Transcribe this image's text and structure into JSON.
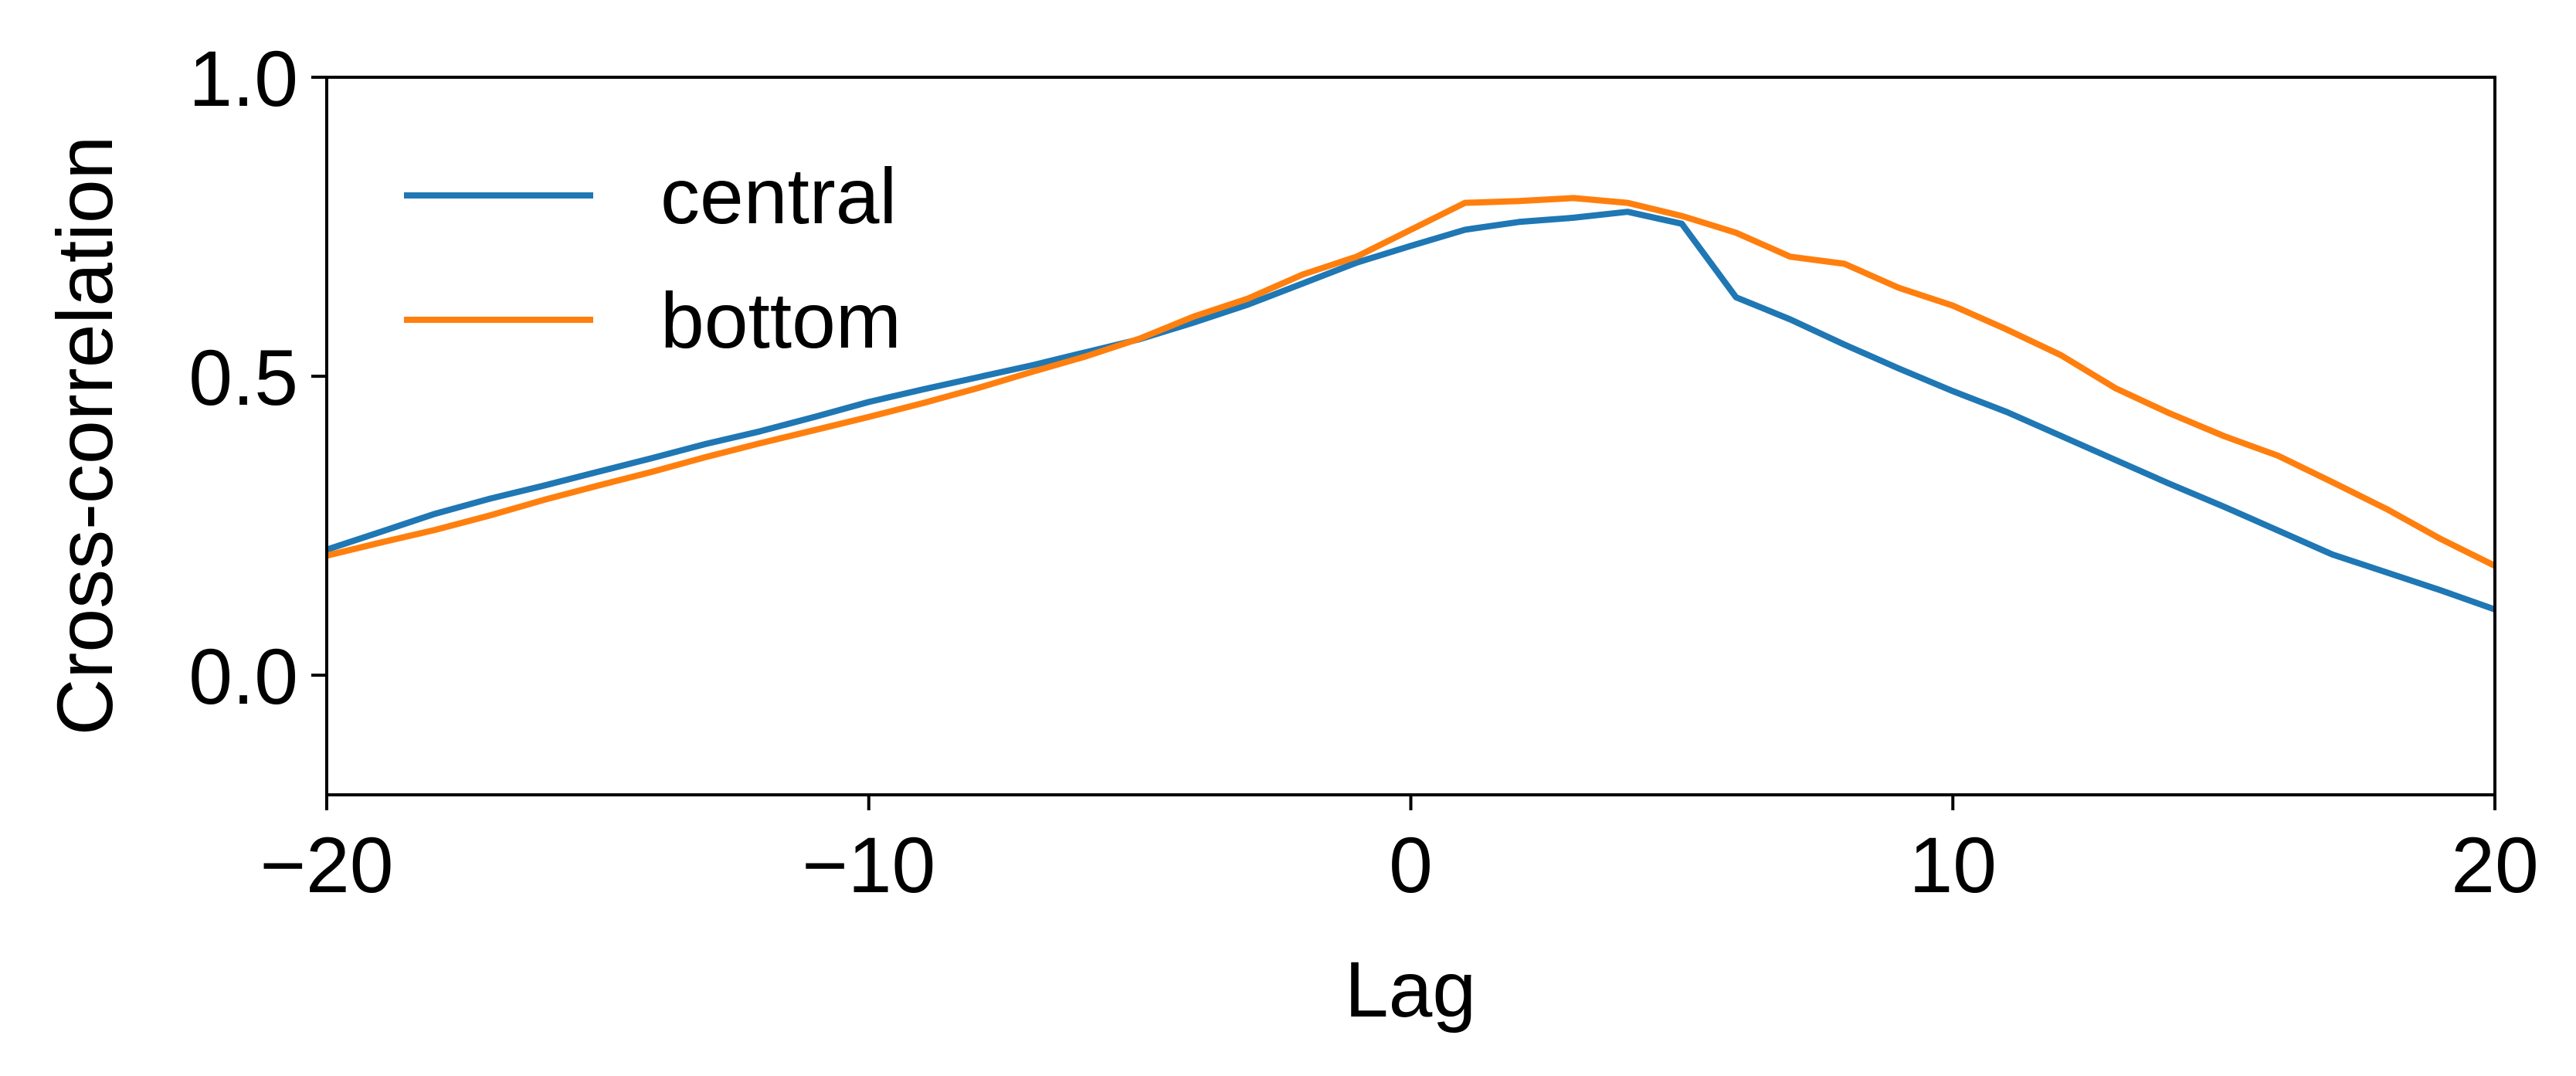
{
  "chart_data": {
    "type": "line",
    "title": "",
    "xlabel": "Lag",
    "ylabel": "Cross-correlation",
    "xlim": [
      -20,
      20
    ],
    "ylim": [
      -0.2,
      1.0
    ],
    "xticks": [
      -20,
      -10,
      0,
      10,
      20
    ],
    "xtick_labels": [
      "−20",
      "−10",
      "0",
      "10",
      "20"
    ],
    "yticks": [
      0.0,
      0.5,
      1.0
    ],
    "ytick_labels": [
      "0.0",
      "0.5",
      "1.0"
    ],
    "grid": false,
    "legend_position": "top-left",
    "x": [
      -20,
      -19,
      -18,
      -17,
      -16,
      -15,
      -14,
      -13,
      -12,
      -11,
      -10,
      -9,
      -8,
      -7,
      -6,
      -5,
      -4,
      -3,
      -2,
      -1,
      0,
      1,
      2,
      3,
      4,
      5,
      6,
      7,
      8,
      9,
      10,
      11,
      12,
      13,
      14,
      15,
      16,
      17,
      18,
      19,
      20
    ],
    "series": [
      {
        "name": "central",
        "color": "#1f77b4",
        "values": [
          0.21,
          0.24,
          0.27,
          0.295,
          0.317,
          0.34,
          0.363,
          0.387,
          0.408,
          0.432,
          0.457,
          0.478,
          0.498,
          0.518,
          0.54,
          0.562,
          0.59,
          0.62,
          0.655,
          0.69,
          0.718,
          0.745,
          0.758,
          0.765,
          0.775,
          0.755,
          0.632,
          0.595,
          0.553,
          0.513,
          0.475,
          0.44,
          0.4,
          0.36,
          0.32,
          0.282,
          0.242,
          0.202,
          0.172,
          0.142,
          0.11
        ]
      },
      {
        "name": "bottom",
        "color": "#ff7f0e",
        "values": [
          0.2,
          0.222,
          0.243,
          0.267,
          0.293,
          0.317,
          0.34,
          0.365,
          0.388,
          0.41,
          0.432,
          0.455,
          0.48,
          0.507,
          0.533,
          0.563,
          0.6,
          0.63,
          0.67,
          0.7,
          0.745,
          0.79,
          0.793,
          0.798,
          0.79,
          0.768,
          0.74,
          0.7,
          0.688,
          0.648,
          0.618,
          0.578,
          0.535,
          0.48,
          0.438,
          0.4,
          0.367,
          0.323,
          0.278,
          0.228,
          0.183
        ]
      }
    ]
  }
}
